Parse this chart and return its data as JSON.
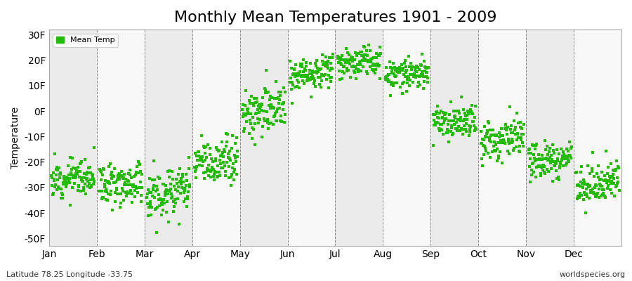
{
  "title": "Monthly Mean Temperatures 1901 - 2009",
  "ylabel": "Temperature",
  "xlabel_labels": [
    "Jan",
    "Feb",
    "Mar",
    "Apr",
    "May",
    "Jun",
    "Jul",
    "Aug",
    "Sep",
    "Oct",
    "Nov",
    "Dec"
  ],
  "ytick_labels": [
    "30F",
    "20F",
    "10F",
    "0F",
    "-10F",
    "-20F",
    "-30F",
    "-40F",
    "-50F"
  ],
  "ytick_values": [
    30,
    20,
    10,
    0,
    -10,
    -20,
    -30,
    -40,
    -50
  ],
  "ylim": [
    -53,
    32
  ],
  "xlim": [
    0,
    13
  ],
  "dot_color": "#22bb00",
  "dot_size": 5,
  "legend_label": "Mean Temp",
  "bg_color": "#ffffff",
  "band_color_odd": "#ebebeb",
  "band_color_even": "#f8f8f8",
  "footer_left": "Latitude 78.25 Longitude -33.75",
  "footer_right": "worldspecies.org",
  "title_fontsize": 16,
  "axis_fontsize": 10,
  "footer_fontsize": 8,
  "monthly_means": [
    -27,
    -29,
    -33,
    -21,
    -1,
    14,
    18,
    13,
    -5,
    -12,
    -20,
    -29
  ],
  "monthly_trends": [
    0.02,
    0.02,
    0.02,
    0.02,
    0.02,
    0.02,
    0.02,
    0.02,
    0.02,
    0.02,
    0.02,
    0.02
  ],
  "monthly_spreads": [
    3.5,
    4.0,
    5.0,
    5.0,
    5.0,
    3.0,
    3.0,
    2.5,
    3.5,
    4.0,
    4.0,
    4.0
  ],
  "num_years": 109,
  "start_year": 1901,
  "seed": 12
}
